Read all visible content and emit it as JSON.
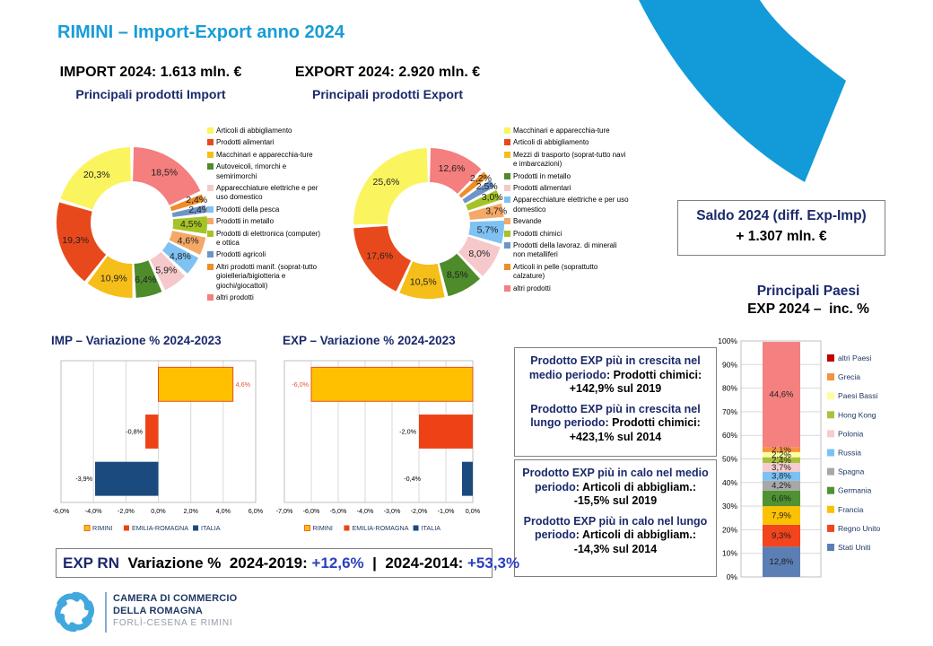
{
  "colors": {
    "navy": "#1B2A6B",
    "blue": "#2B3FC0",
    "black": "#000000",
    "accent_cyan": "#189CD8"
  },
  "title": "RIMINI – Import-Export anno 2024",
  "import_section": {
    "heading": "IMPORT 2024: 1.613 mln. €",
    "subheading": "Principali prodotti Import"
  },
  "export_section": {
    "heading": "EXPORT 2024: 2.920 mln. €",
    "subheading": "Principali prodotti Export"
  },
  "saldo_box": {
    "line1": "Saldo 2024 (diff. Exp-Imp)",
    "line2": "+ 1.307 mln. €"
  },
  "paesi_title": {
    "line1": "Principali Paesi",
    "line2": "EXP 2024 –  inc. %"
  },
  "growth_box": {
    "paragraphs": [
      [
        {
          "text": "Prodotto EXP più in crescita nel medio periodo",
          "color": "navy"
        },
        {
          "text": ": Prodotti chimici: +142,9% sul 2019",
          "color": "black"
        }
      ],
      [
        {
          "text": "Prodotto EXP più in crescita nel lungo periodo",
          "color": "navy"
        },
        {
          "text": ": Prodotti chimici: +423,1% sul 2014",
          "color": "black"
        }
      ]
    ]
  },
  "decline_box": {
    "paragraphs": [
      [
        {
          "text": "Prodotto EXP più in calo nel medio periodo",
          "color": "navy"
        },
        {
          "text": ": Articoli di abbigliam.: -15,5% sul 2019",
          "color": "black"
        }
      ],
      [
        {
          "text": "Prodotto EXP più in calo nel lungo periodo",
          "color": "navy"
        },
        {
          "text": ": Articoli di abbigliam.: -14,3% sul 2014",
          "color": "black"
        }
      ]
    ]
  },
  "exp_rn_box": {
    "runs": [
      {
        "text": "EXP RN",
        "color": "navy"
      },
      {
        "text": "  Variazione %  2024-2019: ",
        "color": "black"
      },
      {
        "text": "+12,6%",
        "color": "blue"
      },
      {
        "text": "  |  ",
        "color": "black"
      },
      {
        "text": "2024-2014: ",
        "color": "black"
      },
      {
        "text": "+53,3%",
        "color": "blue"
      }
    ]
  },
  "footer_logo": {
    "line1": "CAMERA DI COMMERCIO",
    "line2": "DELLA ROMAGNA",
    "line3": "FORLÌ-CESENA E RIMINI"
  },
  "chart_data": [
    {
      "id": "import_donut",
      "type": "pie",
      "subtype": "donut-exploded",
      "title": "Principali prodotti Import",
      "legend_position": "right",
      "slices": [
        {
          "label": "Articoli di abbigliamento",
          "value": 20.3,
          "display": "20,3%",
          "color": "#FAF55F"
        },
        {
          "label": "Prodotti alimentari",
          "value": 19.3,
          "display": "19,3%",
          "color": "#E8491C"
        },
        {
          "label": "Macchinari e apparecchia-ture",
          "value": 10.9,
          "display": "10,9%",
          "color": "#F5BE19"
        },
        {
          "label": "Autoveicoli, rimorchi e semirimorchi",
          "value": 6.4,
          "display": "6,4%",
          "color": "#4D8B2B"
        },
        {
          "label": "Apparecchiature elettriche e per uso domestico",
          "value": 5.9,
          "display": "5,9%",
          "color": "#F5C9CB"
        },
        {
          "label": "Prodotti della pesca",
          "value": 4.8,
          "display": "4,8%",
          "color": "#7EC2F3"
        },
        {
          "label": "Prodotti in metallo",
          "value": 4.6,
          "display": "4,6%",
          "color": "#F5A968"
        },
        {
          "label": "Prodotti di elettronica (computer) e ottica",
          "value": 4.5,
          "display": "4,5%",
          "color": "#A6C326"
        },
        {
          "label": "Prodotti agricoli",
          "value": 2.4,
          "display": "2,4%",
          "color": "#6D94C6"
        },
        {
          "label": "Altri prodotti manif. (soprat-tutto gioielleria/bigiotteria e giochi/giocattoli)",
          "value": 2.4,
          "display": "2,4%",
          "color": "#EF8D26"
        },
        {
          "label": "altri prodotti",
          "value": 18.5,
          "display": "18,5%",
          "color": "#F57E7E"
        }
      ]
    },
    {
      "id": "export_donut",
      "type": "pie",
      "subtype": "donut-exploded",
      "title": "Principali prodotti Export",
      "legend_position": "right",
      "slices": [
        {
          "label": "Macchinari e apparecchia-ture",
          "value": 25.6,
          "display": "25,6%",
          "color": "#FAF55F"
        },
        {
          "label": "Articoli di abbigliamento",
          "value": 17.6,
          "display": "17,6%",
          "color": "#E8491C"
        },
        {
          "label": "Mezzi di trasporto (soprat-tutto navi e imbarcazioni)",
          "value": 10.5,
          "display": "10,5%",
          "color": "#F5BE19"
        },
        {
          "label": "Prodotti in metallo",
          "value": 8.5,
          "display": "8,5%",
          "color": "#4D8B2B"
        },
        {
          "label": "Prodotti alimentari",
          "value": 8.0,
          "display": "8,0%",
          "color": "#F5C9CB"
        },
        {
          "label": "Apparecchiature elettriche e per uso domestico",
          "value": 5.7,
          "display": "5,7%",
          "color": "#7EC2F3"
        },
        {
          "label": "Bevande",
          "value": 3.7,
          "display": "3,7%",
          "color": "#F5A968"
        },
        {
          "label": "Prodotti chimici",
          "value": 3.0,
          "display": "3,0%",
          "color": "#A6C326"
        },
        {
          "label": "Prodotti della lavoraz. di minerali non metalliferi",
          "value": 2.5,
          "display": "2,5%",
          "color": "#6D94C6"
        },
        {
          "label": "Articoli in pelle (soprattutto calzature)",
          "value": 2.2,
          "display": "2,2%",
          "color": "#EF8D26"
        },
        {
          "label": "altri prodotti",
          "value": 12.6,
          "display": "12,6%",
          "color": "#F57E7E"
        }
      ]
    },
    {
      "id": "imp_var",
      "type": "bar",
      "orientation": "horizontal",
      "title": "IMP – Variazione % 2024-2023",
      "xlim": [
        -6,
        6
      ],
      "grid": true,
      "legend_position": "bottom",
      "xticks": [
        "-6,0%",
        "-4,0%",
        "-2,0%",
        "0,0%",
        "2,0%",
        "4,0%",
        "6,0%"
      ],
      "series": [
        {
          "name": "RIMINI",
          "value": 4.6,
          "display": "4,6%",
          "color": "#FFC000",
          "border": "#E2511F",
          "label_color": "#E8543A"
        },
        {
          "name": "EMILIA-ROMAGNA",
          "value": -0.8,
          "display": "-0,8%",
          "color": "#EE4216",
          "label_color": "#000000"
        },
        {
          "name": "ITALIA",
          "value": -3.9,
          "display": "-3,9%",
          "color": "#1B4A7E",
          "label_color": "#000000"
        }
      ]
    },
    {
      "id": "exp_var",
      "type": "bar",
      "orientation": "horizontal",
      "title": "EXP – Variazione % 2024-2023",
      "xlim": [
        -7,
        0
      ],
      "grid": true,
      "legend_position": "bottom",
      "xticks": [
        "-7,0%",
        "-6,0%",
        "-5,0%",
        "-4,0%",
        "-3,0%",
        "-2,0%",
        "-1,0%",
        "0,0%"
      ],
      "series": [
        {
          "name": "RIMINI",
          "value": -6.0,
          "display": "-6,0%",
          "color": "#FFC000",
          "border": "#E2511F",
          "label_color": "#E8543A"
        },
        {
          "name": "EMILIA-ROMAGNA",
          "value": -2.0,
          "display": "-2,0%",
          "color": "#EE4216",
          "label_color": "#000000"
        },
        {
          "name": "ITALIA",
          "value": -0.4,
          "display": "-0,4%",
          "color": "#1B4A7E",
          "label_color": "#000000",
          "label_dx": -43
        }
      ]
    },
    {
      "id": "paesi_stack",
      "type": "bar",
      "subtype": "stacked-column",
      "title": "Principali Paesi EXP 2024 – inc. %",
      "ylim": [
        0,
        100
      ],
      "grid": true,
      "legend_position": "right",
      "yticks": [
        "0%",
        "10%",
        "20%",
        "30%",
        "40%",
        "50%",
        "60%",
        "70%",
        "80%",
        "90%",
        "100%"
      ],
      "segments_bottom_to_top": [
        {
          "label": "Stati Uniti",
          "value": 12.8,
          "display": "12,8%",
          "color": "#5B7FB4"
        },
        {
          "label": "Regno Unito",
          "value": 9.3,
          "display": "9,3%",
          "color": "#F2441D"
        },
        {
          "label": "Francia",
          "value": 7.9,
          "display": "7,9%",
          "color": "#FBC103"
        },
        {
          "label": "Germania",
          "value": 6.6,
          "display": "6,6%",
          "color": "#4F9231"
        },
        {
          "label": "Spagna",
          "value": 4.2,
          "display": "4,2%",
          "color": "#A8A8A8"
        },
        {
          "label": "Russia",
          "value": 3.8,
          "display": "3,8%",
          "color": "#7CC1F4"
        },
        {
          "label": "Polonia",
          "value": 3.7,
          "display": "3,7%",
          "color": "#F7CBCF"
        },
        {
          "label": "Hong Kong",
          "value": 2.4,
          "display": "2,4%",
          "color": "#A8C23D"
        },
        {
          "label": "Paesi Bassi",
          "value": 2.2,
          "display": "2,2%",
          "color": "#FEFD9F"
        },
        {
          "label": "Grecia",
          "value": 2.1,
          "display": "2,1%",
          "color": "#F79240"
        },
        {
          "label": "altri Paesi",
          "value": 44.6,
          "display": "44,6%",
          "color": "#F58080",
          "legend_color": "#C00000"
        }
      ]
    }
  ]
}
